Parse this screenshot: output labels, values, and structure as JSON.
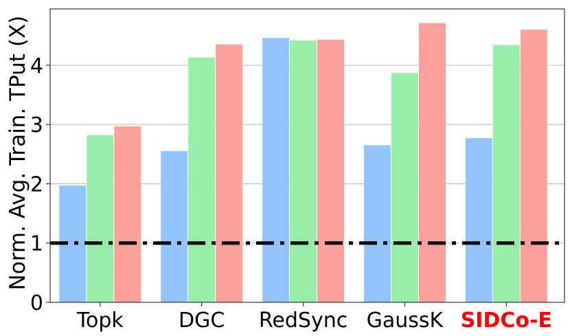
{
  "chart_data": {
    "type": "bar",
    "categories": [
      "Topk",
      "DGC",
      "RedSync",
      "GaussK",
      "SIDCo-E"
    ],
    "highlight_category": "SIDCo-E",
    "highlight_color": "#ff0000",
    "series": [
      {
        "color": "#93c5fd",
        "values": [
          1.97,
          2.55,
          4.46,
          2.65,
          2.77
        ]
      },
      {
        "color": "#98eda8",
        "values": [
          2.82,
          4.13,
          4.42,
          3.87,
          4.34
        ]
      },
      {
        "color": "#fca19b",
        "values": [
          2.97,
          4.35,
          4.43,
          4.71,
          4.6
        ]
      }
    ],
    "ylabel": "Norm. Avg. Train. TPut (X)",
    "xlabel": "",
    "ylim": [
      0,
      4.95
    ],
    "yticks": [
      0,
      1,
      2,
      3,
      4
    ],
    "grid": "horizontal",
    "baseline": {
      "y": 1,
      "style": "dash-dot",
      "color": "#000000"
    }
  }
}
